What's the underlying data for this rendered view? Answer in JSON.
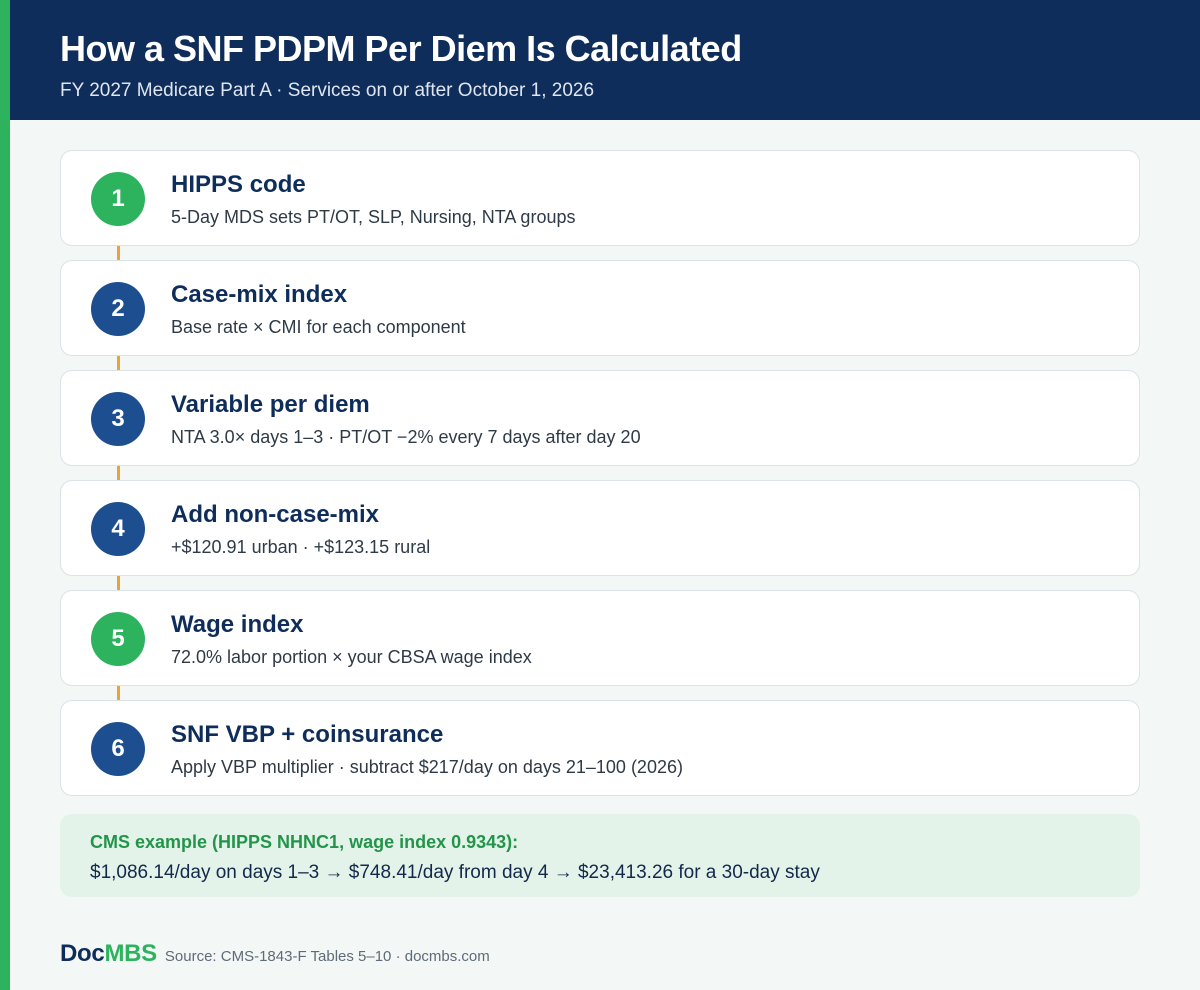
{
  "header": {
    "title": "How a SNF PDPM Per Diem Is Calculated",
    "subtitle": "FY 2027 Medicare Part A · Services on or after October 1, 2026"
  },
  "colors": {
    "navy": "#0f2d5a",
    "green": "#2db35d",
    "step_blue": "#1d4e8f",
    "connector": "#e8a33a",
    "example_bg": "#e4f3e9",
    "example_title": "#23954a"
  },
  "steps": [
    {
      "number": "1",
      "title": "HIPPS code",
      "desc": "5-Day MDS sets PT/OT, SLP, Nursing, NTA groups",
      "color": "#2db35d"
    },
    {
      "number": "2",
      "title": "Case-mix index",
      "desc": "Base rate × CMI for each component",
      "color": "#1d4e8f"
    },
    {
      "number": "3",
      "title": "Variable per diem",
      "desc": "NTA 3.0× days 1–3 · PT/OT −2% every 7 days after day 20",
      "color": "#1d4e8f"
    },
    {
      "number": "4",
      "title": "Add non-case-mix",
      "desc": "+$120.91 urban · +$123.15 rural",
      "color": "#1d4e8f"
    },
    {
      "number": "5",
      "title": "Wage index",
      "desc": "72.0% labor portion × your CBSA wage index",
      "color": "#2db35d"
    },
    {
      "number": "6",
      "title": "SNF VBP + coinsurance",
      "desc": "Apply VBP multiplier · subtract $217/day on days 21–100 (2026)",
      "color": "#1d4e8f"
    }
  ],
  "example": {
    "title": "CMS example (HIPPS NHNC1, wage index 0.9343):",
    "body": "$1,086.14/day on days 1–3 → $748.41/day from day 4 → $23,413.26 for a 30-day stay"
  },
  "footer": {
    "logo_doc": "Doc",
    "logo_mbs": "MBS",
    "source": "Source: CMS-1843-F Tables 5–10 · docmbs.com"
  }
}
